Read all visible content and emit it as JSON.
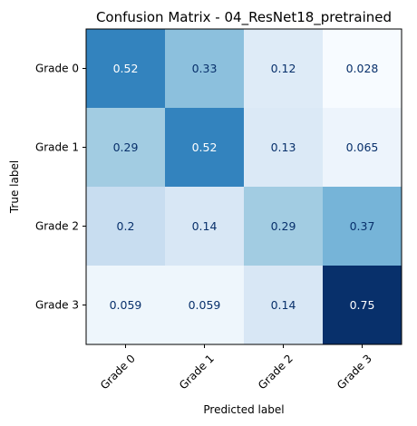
{
  "chart_data": {
    "type": "heatmap",
    "title": "Confusion Matrix - 04_ResNet18_pretrained",
    "xlabel": "Predicted label",
    "ylabel": "True label",
    "x_categories": [
      "Grade 0",
      "Grade 1",
      "Grade 2",
      "Grade 3"
    ],
    "y_categories": [
      "Grade 0",
      "Grade 1",
      "Grade 2",
      "Grade 3"
    ],
    "values": [
      [
        0.52,
        0.33,
        0.12,
        0.028
      ],
      [
        0.29,
        0.52,
        0.13,
        0.065
      ],
      [
        0.2,
        0.14,
        0.29,
        0.37
      ],
      [
        0.059,
        0.059,
        0.14,
        0.75
      ]
    ],
    "value_labels": [
      [
        "0.52",
        "0.33",
        "0.12",
        "0.028"
      ],
      [
        "0.29",
        "0.52",
        "0.13",
        "0.065"
      ],
      [
        "0.2",
        "0.14",
        "0.29",
        "0.37"
      ],
      [
        "0.059",
        "0.059",
        "0.14",
        "0.75"
      ]
    ],
    "colormap": "Blues",
    "vmin": 0.028,
    "vmax": 0.75,
    "grid": false,
    "legend": "none"
  }
}
